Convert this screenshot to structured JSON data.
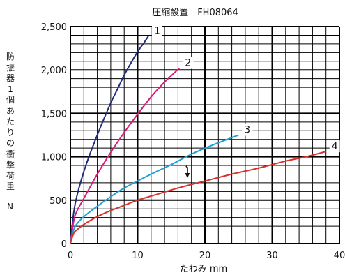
{
  "chart_data": {
    "type": "line",
    "title": "圧縮設置　FH08064",
    "xlabel": "たわみ mm",
    "ylabel": "防振器1個あたりの衝撃荷重",
    "yunit": "N",
    "xlim": [
      0,
      40
    ],
    "ylim": [
      0,
      2500
    ],
    "xticks": [
      "0",
      "10",
      "20",
      "30",
      "40"
    ],
    "yticks": [
      "0",
      "500",
      "1,000",
      "1,500",
      "2,000",
      "2,500"
    ],
    "grid": true,
    "series": [
      {
        "name": "1",
        "color": "#1f2a7a",
        "x": [
          0,
          0.5,
          1,
          2,
          3,
          4,
          5,
          6,
          7,
          8,
          9,
          10,
          11,
          11.6
        ],
        "y": [
          0,
          360,
          560,
          830,
          1050,
          1250,
          1440,
          1620,
          1780,
          1940,
          2080,
          2210,
          2320,
          2390
        ]
      },
      {
        "name": "2",
        "color": "#d81b7a",
        "x": [
          0,
          0.5,
          1,
          2,
          4,
          6,
          8,
          10,
          12,
          14,
          16.2
        ],
        "y": [
          0,
          260,
          380,
          520,
          800,
          1050,
          1280,
          1490,
          1690,
          1860,
          2020
        ]
      },
      {
        "name": "3",
        "color": "#1ea0d4",
        "x": [
          0,
          0.5,
          1,
          2,
          4,
          6,
          8,
          10,
          12,
          15,
          18,
          21,
          24,
          25
        ],
        "y": [
          0,
          160,
          230,
          310,
          430,
          540,
          640,
          720,
          800,
          910,
          1030,
          1130,
          1220,
          1250
        ]
      },
      {
        "name": "4",
        "color": "#d8302a",
        "x": [
          0,
          0.5,
          1,
          2,
          4,
          6,
          8,
          10,
          13,
          16,
          20,
          24,
          28,
          32,
          35,
          38
        ],
        "y": [
          0,
          120,
          160,
          220,
          310,
          380,
          440,
          500,
          570,
          640,
          720,
          800,
          870,
          950,
          1000,
          1060
        ]
      }
    ]
  }
}
